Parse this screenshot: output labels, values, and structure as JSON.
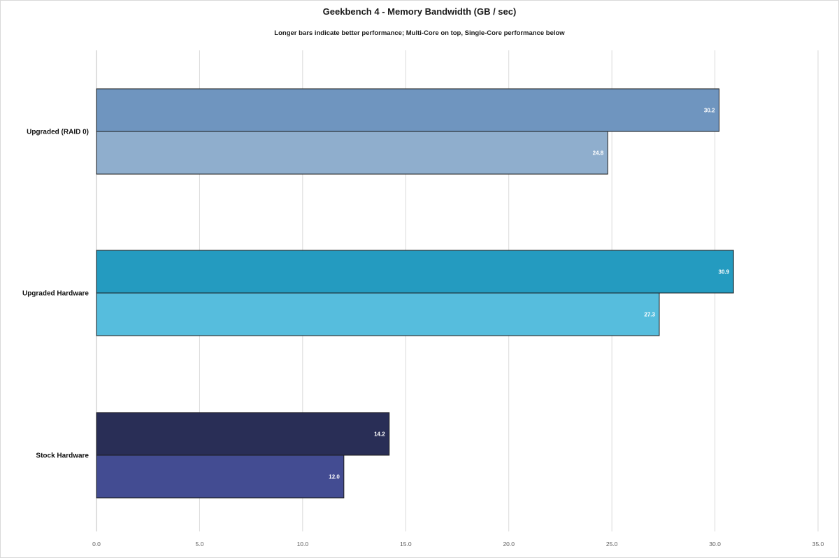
{
  "chart_data": {
    "type": "bar",
    "orientation": "horizontal",
    "title": "Geekbench 4 - Memory Bandwidth (GB / sec)",
    "subtitle": "Longer bars indicate better performance; Multi-Core on top, Single-Core performance below",
    "categories": [
      "Upgraded (RAID 0)",
      "Upgraded Hardware",
      "Stock Hardware"
    ],
    "series": [
      {
        "values": [
          30.2,
          30.9,
          14.2
        ],
        "colors": [
          "#6f95bf",
          "#249bc0",
          "#292e56"
        ]
      },
      {
        "values": [
          24.8,
          27.3,
          12.0
        ],
        "colors": [
          "#8faecd",
          "#56bddd",
          "#434c92"
        ]
      }
    ],
    "data_labels": [
      [
        "30.2",
        "30.9",
        "14.2"
      ],
      [
        "24.8",
        "27.3",
        "12.0"
      ]
    ],
    "x_ticks": [
      "0.0",
      "5.0",
      "10.0",
      "15.0",
      "20.0",
      "25.0",
      "30.0",
      "35.0"
    ],
    "xlim": [
      0,
      35
    ],
    "grid": true,
    "legend": "none"
  }
}
